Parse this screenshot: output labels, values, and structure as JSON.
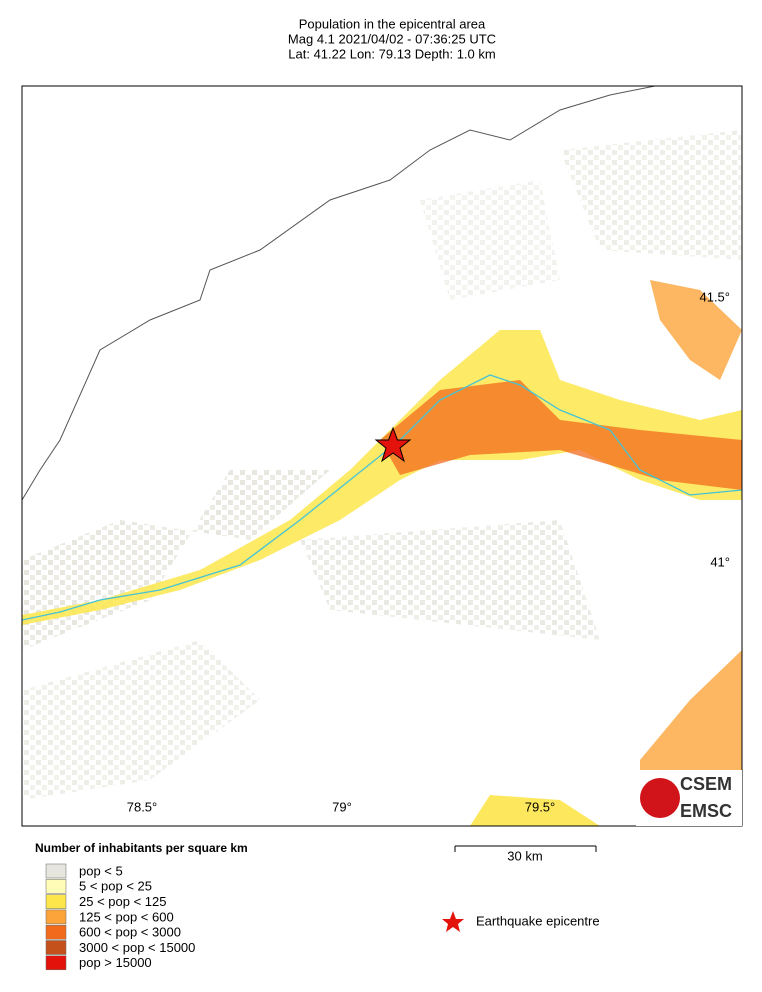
{
  "header": {
    "title": "Population in the epicentral area",
    "line2": "Mag 4.1  2021/04/02 - 07:36:25 UTC",
    "line3": "Lat: 41.22    Lon:  79.13     Depth:  1.0 km"
  },
  "map": {
    "lon_labels": [
      "78.5°",
      "79°",
      "79.5°"
    ],
    "lat_labels": [
      "41.5°",
      "41°"
    ]
  },
  "legend": {
    "title": "Number of inhabitants per square km",
    "items": [
      {
        "label": "pop < 5",
        "color": "#e6e6df"
      },
      {
        "label": "5 < pop < 25",
        "color": "#fffcb8"
      },
      {
        "label": "25 < pop < 125",
        "color": "#fde64b"
      },
      {
        "label": "125 < pop < 600",
        "color": "#fca43a"
      },
      {
        "label": "600 < pop < 3000",
        "color": "#f26a1c"
      },
      {
        "label": "3000 < pop < 15000",
        "color": "#c4501b"
      },
      {
        "label": "pop > 15000",
        "color": "#e3120b"
      }
    ]
  },
  "scale": {
    "label": "30 km"
  },
  "epicentre": {
    "label": "Earthquake epicentre"
  },
  "logo": {
    "line1": "CSEM",
    "line2": "EMSC"
  }
}
